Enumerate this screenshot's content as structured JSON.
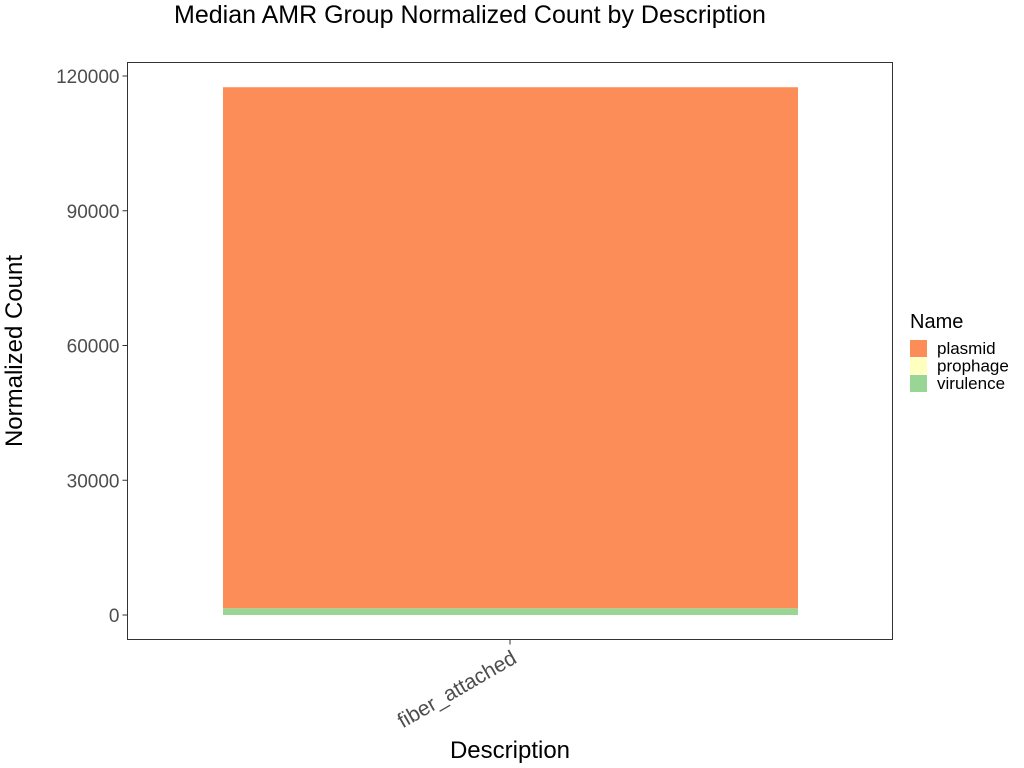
{
  "chart_data": {
    "type": "bar",
    "stacked": true,
    "title": "Median AMR Group Normalized Count by Description",
    "xlabel": "Description",
    "ylabel": "Normalized Count",
    "categories": [
      "fiber_attached"
    ],
    "ylim": [
      0,
      120000
    ],
    "yticks": [
      0,
      30000,
      60000,
      90000,
      120000
    ],
    "grid": false,
    "legend_title": "Name",
    "legend_position": "right",
    "series": [
      {
        "name": "plasmid",
        "color": "#fc8d59",
        "values": [
          116000
        ]
      },
      {
        "name": "prophage",
        "color": "#ffffbf",
        "values": [
          0
        ]
      },
      {
        "name": "virulence",
        "color": "#99d594",
        "values": [
          1500
        ]
      }
    ]
  }
}
